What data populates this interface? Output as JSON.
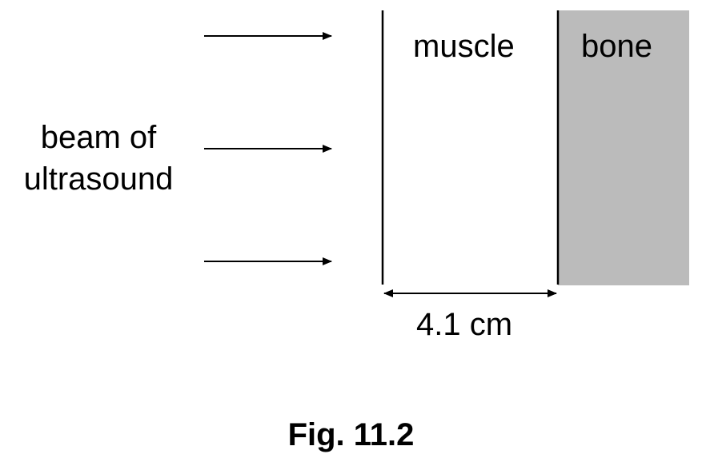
{
  "diagram": {
    "beam_label_line1": "beam of",
    "beam_label_line2": "ultrasound",
    "muscle_label": "muscle",
    "bone_label": "bone",
    "distance_label": "4.1 cm",
    "caption": "Fig. 11.2",
    "colors": {
      "bone_fill": "#bbbbbb",
      "line": "#000000",
      "background": "#ffffff"
    }
  }
}
